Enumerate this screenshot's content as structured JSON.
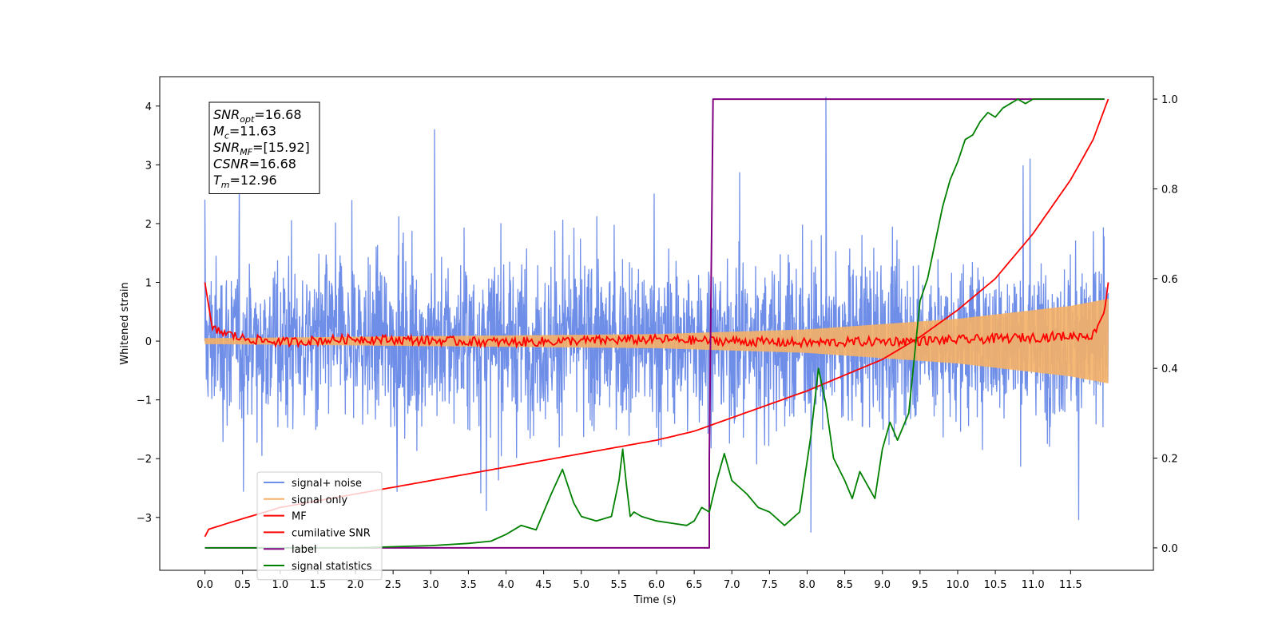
{
  "chart_data": {
    "type": "line",
    "xlabel": "Time (s)",
    "ylabel_left": "Whitened strain",
    "ylabel_right": "",
    "x_ticks": [
      "0.0",
      "0.5",
      "1.0",
      "1.5",
      "2.0",
      "2.5",
      "3.0",
      "3.5",
      "4.0",
      "4.5",
      "5.0",
      "5.5",
      "6.0",
      "6.5",
      "7.0",
      "7.5",
      "8.0",
      "8.5",
      "9.0",
      "9.5",
      "10.0",
      "10.5",
      "11.0",
      "11.5"
    ],
    "y_left_ticks": [
      "−3",
      "−2",
      "−1",
      "0",
      "1",
      "2",
      "3",
      "4"
    ],
    "y_right_ticks": [
      "0.0",
      "0.2",
      "0.4",
      "0.6",
      "0.8",
      "1.0"
    ],
    "x_range": [
      -0.6,
      12.6
    ],
    "y_left_range": [
      -3.9,
      4.5
    ],
    "y_right_range": [
      -0.05,
      1.05
    ],
    "series": [
      {
        "name": "signal+ noise",
        "axis": "left",
        "color": "#6f8ee8",
        "description_points": {
          "t_start": 0.0,
          "t_end": 12.0,
          "typical_std": 0.95,
          "peaks": [
            [
              0.0,
              2.4
            ],
            [
              3.05,
              3.6
            ],
            [
              8.25,
              4.15
            ],
            [
              8.05,
              -3.25
            ]
          ]
        }
      },
      {
        "name": "signal only",
        "axis": "left",
        "color": "#f5b066",
        "envelope": [
          [
            0.0,
            0.05
          ],
          [
            6.0,
            0.12
          ],
          [
            8.0,
            0.2
          ],
          [
            10.0,
            0.38
          ],
          [
            11.5,
            0.6
          ],
          [
            12.0,
            0.72
          ]
        ]
      },
      {
        "name": "MF",
        "axis": "left",
        "color": "#ff0000",
        "x": [
          0.0,
          0.05,
          0.1,
          0.5,
          1.0,
          2.0,
          4.0,
          6.0,
          8.0,
          10.0,
          11.8,
          11.95,
          12.0
        ],
        "y": [
          1.0,
          0.6,
          0.2,
          0.05,
          -0.02,
          0.04,
          -0.02,
          0.03,
          -0.03,
          0.02,
          0.1,
          0.5,
          1.0
        ]
      },
      {
        "name": "cumilative SNR",
        "axis": "right",
        "color": "#ff0000",
        "x": [
          0.0,
          0.02,
          0.5,
          1.0,
          2.0,
          3.0,
          4.0,
          5.0,
          6.0,
          6.5,
          7.0,
          8.0,
          9.0,
          9.5,
          10.0,
          10.5,
          11.0,
          11.5,
          11.8,
          12.0
        ],
        "y": [
          0.025,
          0.04,
          0.065,
          0.09,
          0.12,
          0.15,
          0.18,
          0.21,
          0.24,
          0.26,
          0.29,
          0.35,
          0.42,
          0.47,
          0.53,
          0.6,
          0.7,
          0.82,
          0.91,
          1.0
        ]
      },
      {
        "name": "label",
        "axis": "right",
        "color": "#800080",
        "x": [
          0.0,
          6.7,
          6.7,
          6.75,
          11.95
        ],
        "y": [
          0.0,
          0.0,
          0.2,
          1.0,
          1.0
        ]
      },
      {
        "name": "signal statistics",
        "axis": "right",
        "color": "#008000",
        "x": [
          0.0,
          1.0,
          2.0,
          3.0,
          3.5,
          3.8,
          4.0,
          4.2,
          4.4,
          4.6,
          4.75,
          4.9,
          5.0,
          5.2,
          5.4,
          5.5,
          5.55,
          5.6,
          5.65,
          5.7,
          5.8,
          6.0,
          6.2,
          6.4,
          6.5,
          6.6,
          6.7,
          6.8,
          6.9,
          7.0,
          7.2,
          7.35,
          7.5,
          7.7,
          7.9,
          8.05,
          8.15,
          8.25,
          8.35,
          8.5,
          8.6,
          8.7,
          8.9,
          9.0,
          9.1,
          9.2,
          9.35,
          9.5,
          9.6,
          9.7,
          9.8,
          9.9,
          10.0,
          10.1,
          10.2,
          10.3,
          10.4,
          10.5,
          10.6,
          10.7,
          10.8,
          10.9,
          11.0,
          11.2,
          11.5,
          11.8,
          11.95
        ],
        "y": [
          0.0,
          0.0,
          0.0,
          0.005,
          0.01,
          0.015,
          0.03,
          0.05,
          0.04,
          0.12,
          0.175,
          0.1,
          0.07,
          0.06,
          0.07,
          0.15,
          0.22,
          0.14,
          0.07,
          0.08,
          0.07,
          0.06,
          0.055,
          0.05,
          0.06,
          0.09,
          0.08,
          0.15,
          0.21,
          0.15,
          0.12,
          0.09,
          0.08,
          0.05,
          0.08,
          0.25,
          0.4,
          0.32,
          0.2,
          0.15,
          0.11,
          0.17,
          0.11,
          0.22,
          0.28,
          0.24,
          0.3,
          0.55,
          0.6,
          0.68,
          0.76,
          0.82,
          0.86,
          0.91,
          0.92,
          0.95,
          0.97,
          0.96,
          0.98,
          0.99,
          1.0,
          0.99,
          1.0,
          1.0,
          1.0,
          1.0,
          1.0
        ]
      }
    ],
    "legend": {
      "placement": "lower-left",
      "entries": [
        "signal+ noise",
        "signal only",
        "MF",
        "cumilative SNR",
        "label",
        "signal statistics"
      ]
    },
    "annotation_lines": [
      {
        "sym": "SNR",
        "sub": "opt",
        "value": "=16.68"
      },
      {
        "sym": "M",
        "sub": "c",
        "value": "=11.63"
      },
      {
        "sym": "SNR",
        "sub": "MF",
        "value": "=[15.92]"
      },
      {
        "sym": "CSNR",
        "sub": "",
        "value": "=16.68"
      },
      {
        "sym": "T",
        "sub": "m",
        "value": "=12.96"
      }
    ],
    "grid": false
  }
}
